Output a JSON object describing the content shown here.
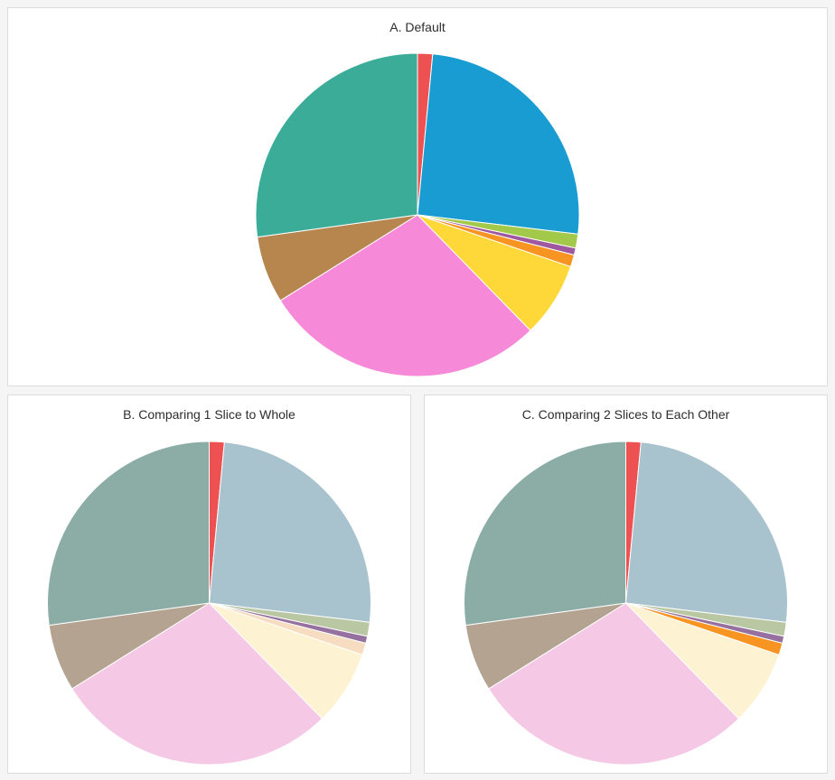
{
  "page": {
    "background_color": "#f5f5f5",
    "panel_background": "#ffffff",
    "panel_border_color": "#dcdcdc",
    "title_text_color": "#2d2d2d"
  },
  "chart_data": [
    {
      "type": "pie",
      "title": "A. Default",
      "start_angle_deg": 0,
      "direction": "clockwise",
      "legend": "none",
      "values_unit": "percent (estimated from slice angles)",
      "slices": [
        {
          "label": "red",
          "value": 1.5,
          "color": "#ed5152"
        },
        {
          "label": "blue",
          "value": 25.4,
          "color": "#189cd1"
        },
        {
          "label": "green",
          "value": 1.4,
          "color": "#a2c94a"
        },
        {
          "label": "purple",
          "value": 0.7,
          "color": "#9e58a0"
        },
        {
          "label": "orange",
          "value": 1.2,
          "color": "#f89422"
        },
        {
          "label": "yellow",
          "value": 7.5,
          "color": "#fed838"
        },
        {
          "label": "pink",
          "value": 28.4,
          "color": "#f78ad8"
        },
        {
          "label": "brown",
          "value": 6.7,
          "color": "#b6864e"
        },
        {
          "label": "teal",
          "value": 27.2,
          "color": "#3bac98"
        }
      ]
    },
    {
      "type": "pie",
      "title": "B. Comparing 1 Slice to Whole",
      "start_angle_deg": 0,
      "direction": "clockwise",
      "legend": "none",
      "values_unit": "percent (estimated from slice angles)",
      "highlighted_slices": [
        "red"
      ],
      "slices": [
        {
          "label": "red",
          "value": 1.5,
          "color": "#ed5152"
        },
        {
          "label": "blue",
          "value": 25.4,
          "color": "#a9c3ce"
        },
        {
          "label": "green",
          "value": 1.4,
          "color": "#b9c7a3"
        },
        {
          "label": "purple",
          "value": 0.7,
          "color": "#9671a0"
        },
        {
          "label": "orange",
          "value": 1.2,
          "color": "#f6dcc0"
        },
        {
          "label": "yellow",
          "value": 7.5,
          "color": "#fdf3d2"
        },
        {
          "label": "pink",
          "value": 28.4,
          "color": "#f5c8e6"
        },
        {
          "label": "brown",
          "value": 6.7,
          "color": "#b4a391"
        },
        {
          "label": "teal",
          "value": 27.2,
          "color": "#8bada6"
        }
      ]
    },
    {
      "type": "pie",
      "title": "C. Comparing 2 Slices to Each Other",
      "start_angle_deg": 0,
      "direction": "clockwise",
      "legend": "none",
      "values_unit": "percent (estimated from slice angles)",
      "highlighted_slices": [
        "red",
        "orange"
      ],
      "slices": [
        {
          "label": "red",
          "value": 1.5,
          "color": "#ed5152"
        },
        {
          "label": "blue",
          "value": 25.4,
          "color": "#a9c3ce"
        },
        {
          "label": "green",
          "value": 1.4,
          "color": "#b9c7a3"
        },
        {
          "label": "purple",
          "value": 0.7,
          "color": "#9671a0"
        },
        {
          "label": "orange",
          "value": 1.2,
          "color": "#f89422"
        },
        {
          "label": "yellow",
          "value": 7.5,
          "color": "#fdf3d2"
        },
        {
          "label": "pink",
          "value": 28.4,
          "color": "#f5c8e6"
        },
        {
          "label": "brown",
          "value": 6.7,
          "color": "#b4a391"
        },
        {
          "label": "teal",
          "value": 27.2,
          "color": "#8bada6"
        }
      ]
    }
  ]
}
